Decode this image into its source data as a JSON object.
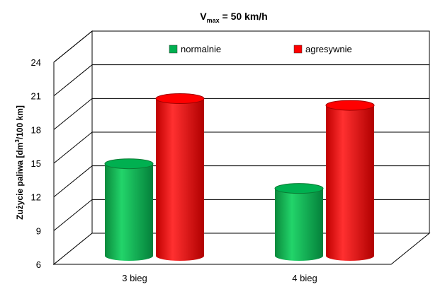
{
  "chart_data": {
    "type": "bar",
    "title": {
      "main": "V",
      "sub": "max",
      "rest": " = 50 km/h"
    },
    "ylabel": {
      "pre": "Zużycie paliwa [dm",
      "sup": "3",
      "post": "/100 km]"
    },
    "xlabel": "",
    "ylim": [
      6,
      24
    ],
    "yticks": [
      "6",
      "9",
      "12",
      "15",
      "18",
      "21",
      "24"
    ],
    "categories": [
      "3 bieg",
      "4 bieg"
    ],
    "series": [
      {
        "name": "normalnie",
        "values": [
          14.2,
          12.0
        ],
        "color": "#00b050"
      },
      {
        "name": "agresywnie",
        "values": [
          20.0,
          19.4
        ],
        "color": "#ff0000"
      }
    ],
    "grid": true,
    "legend": "top"
  }
}
